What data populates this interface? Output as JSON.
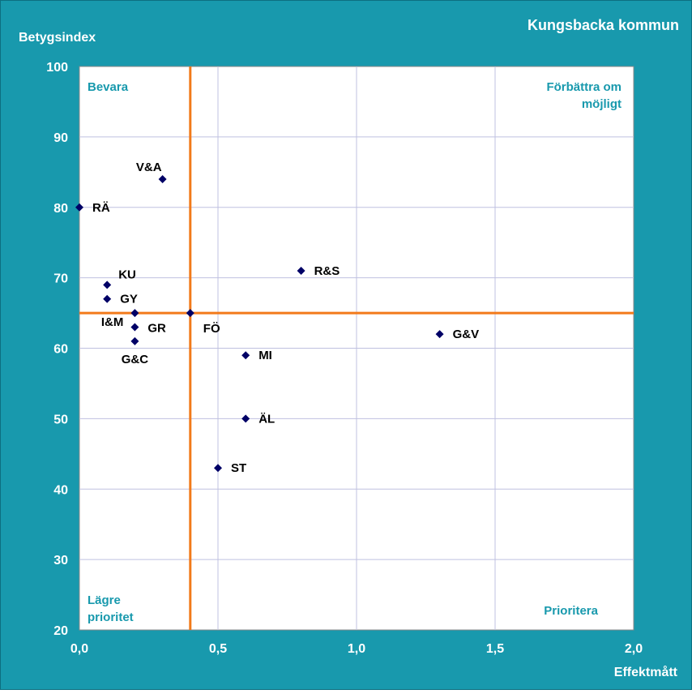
{
  "chart_data": {
    "type": "scatter",
    "title": "Kungsbacka kommun",
    "xlabel": "Effektmått",
    "ylabel": "Betygsindex",
    "xlim": [
      0,
      2
    ],
    "ylim": [
      20,
      100
    ],
    "x_ticks": [
      0,
      0.5,
      1,
      1.5,
      2
    ],
    "x_tick_labels": [
      "0,0",
      "0,5",
      "1,0",
      "1,5",
      "2,0"
    ],
    "y_ticks": [
      20,
      30,
      40,
      50,
      60,
      70,
      80,
      90,
      100
    ],
    "y_tick_labels": [
      "20",
      "30",
      "40",
      "50",
      "60",
      "70",
      "80",
      "90",
      "100"
    ],
    "grid": true,
    "reference_lines": {
      "x": 0.4,
      "y": 65
    },
    "quadrant_labels": {
      "top_left": "Bevara",
      "top_right_line1": "Förbättra om",
      "top_right_line2": "möjligt",
      "bottom_left_line1": "Lägre",
      "bottom_left_line2": "prioritet",
      "bottom_right": "Prioritera"
    },
    "points": [
      {
        "label": "RÄ",
        "x": 0.0,
        "y": 80
      },
      {
        "label": "V&A",
        "x": 0.3,
        "y": 84
      },
      {
        "label": "KU",
        "x": 0.1,
        "y": 69
      },
      {
        "label": "GY",
        "x": 0.1,
        "y": 67
      },
      {
        "label": "I&M",
        "x": 0.2,
        "y": 65
      },
      {
        "label": "GR",
        "x": 0.2,
        "y": 63
      },
      {
        "label": "G&C",
        "x": 0.2,
        "y": 61
      },
      {
        "label": "FÖ",
        "x": 0.4,
        "y": 65
      },
      {
        "label": "R&S",
        "x": 0.8,
        "y": 71
      },
      {
        "label": "MI",
        "x": 0.6,
        "y": 59
      },
      {
        "label": "ÄL",
        "x": 0.6,
        "y": 50
      },
      {
        "label": "ST",
        "x": 0.5,
        "y": 43
      },
      {
        "label": "G&V",
        "x": 1.3,
        "y": 62
      }
    ],
    "colors": {
      "background": "#1899AD",
      "plot_background": "#FFFFFF",
      "grid": "#BFC0E0",
      "reference_line": "#F27A1A",
      "marker": "#000066",
      "quadrant_text": "#1899AD",
      "axis_text": "#FFFFFF",
      "point_label": "#000000"
    }
  }
}
